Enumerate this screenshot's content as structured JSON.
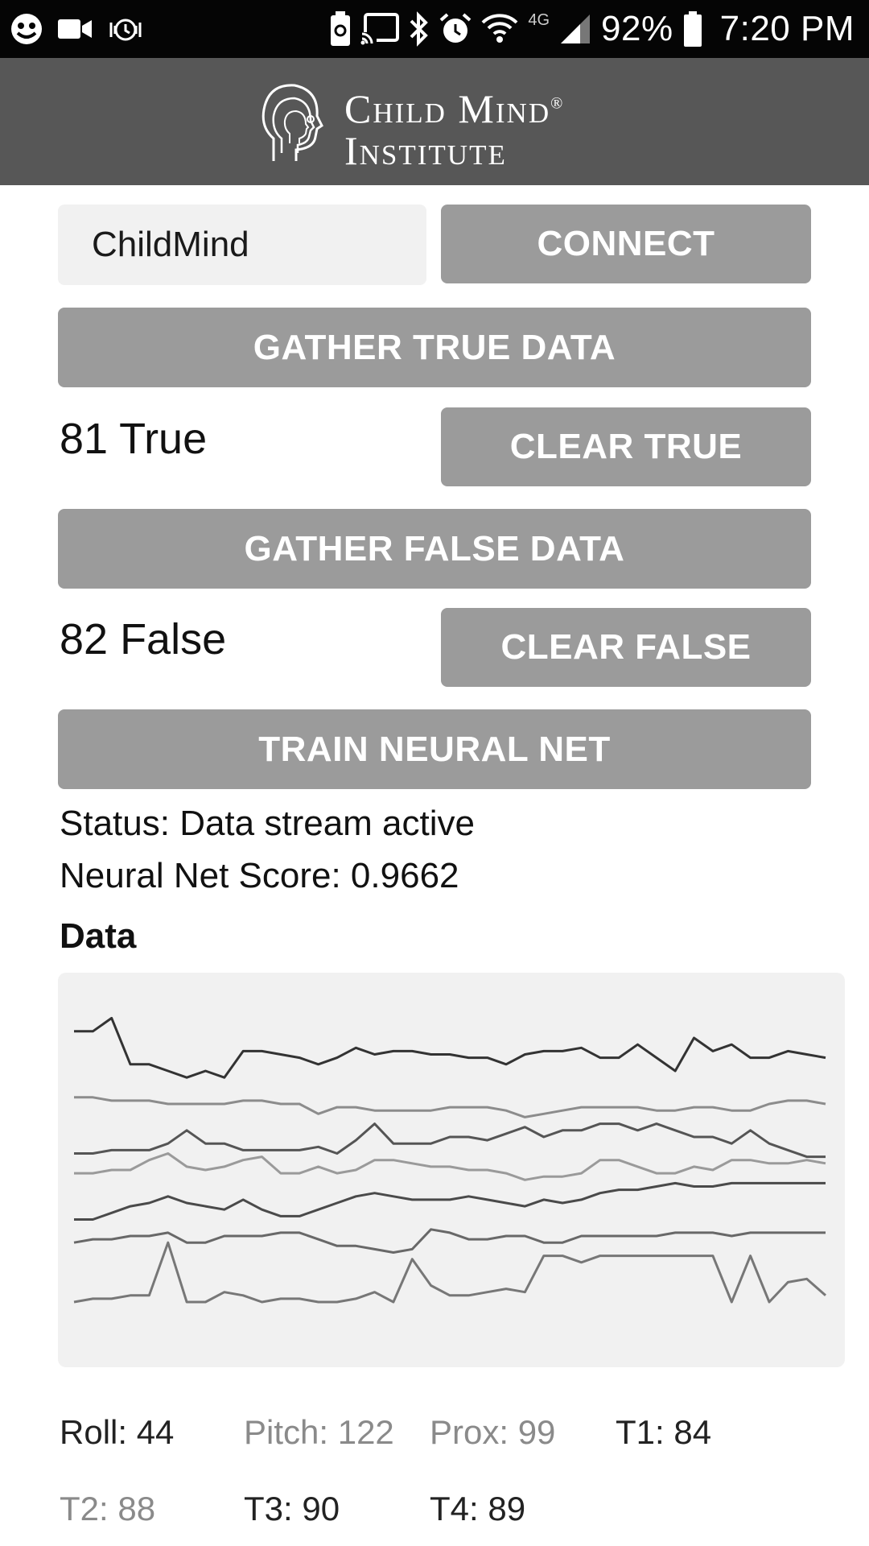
{
  "status_bar": {
    "battery": "92%",
    "time": "7:20 PM",
    "network": "4G",
    "left_icons": [
      "face-icon",
      "video-icon",
      "alarm-vibrate-icon"
    ],
    "right_icons": [
      "battery-saver-icon",
      "cast-icon",
      "bluetooth-icon",
      "alarm-icon",
      "wifi-icon",
      "signal-icon",
      "battery-icon"
    ]
  },
  "header": {
    "logo_line1": "Child Mind",
    "logo_line2": "Institute",
    "logo_mark": "reg"
  },
  "device": {
    "name_value": "ChildMind"
  },
  "buttons": {
    "connect": "CONNECT",
    "gather_true": "GATHER TRUE DATA",
    "clear_true": "CLEAR TRUE",
    "gather_false": "GATHER FALSE DATA",
    "clear_false": "CLEAR FALSE",
    "train": "TRAIN NEURAL NET"
  },
  "counts": {
    "true_label": "81 True",
    "false_label": "82 False"
  },
  "status": {
    "text": "Status: Data stream active",
    "score": "Neural Net Score: 0.9662"
  },
  "data_section": {
    "heading": "Data"
  },
  "chart_data": {
    "type": "line",
    "x": [
      0,
      1,
      2,
      3,
      4,
      5,
      6,
      7,
      8,
      9,
      10,
      11,
      12,
      13,
      14,
      15,
      16,
      17,
      18,
      19,
      20,
      21,
      22,
      23,
      24,
      25,
      26,
      27,
      28,
      29,
      30,
      31,
      32,
      33,
      34,
      35,
      36,
      37,
      38,
      39,
      40
    ],
    "ylim": [
      0,
      100
    ],
    "series": [
      {
        "color": "#333333",
        "values": [
          92,
          92,
          96,
          82,
          82,
          80,
          78,
          80,
          78,
          86,
          86,
          85,
          84,
          82,
          84,
          87,
          85,
          86,
          86,
          85,
          85,
          84,
          84,
          82,
          85,
          86,
          86,
          87,
          84,
          84,
          88,
          84,
          80,
          90,
          86,
          88,
          84,
          84,
          86,
          85,
          84
        ]
      },
      {
        "color": "#8c8c8c",
        "values": [
          72,
          72,
          71,
          71,
          71,
          70,
          70,
          70,
          70,
          71,
          71,
          70,
          70,
          67,
          69,
          69,
          68,
          68,
          68,
          68,
          69,
          69,
          69,
          68,
          66,
          67,
          68,
          69,
          69,
          69,
          69,
          68,
          68,
          69,
          69,
          68,
          68,
          70,
          71,
          71,
          70
        ]
      },
      {
        "color": "#555555",
        "values": [
          55,
          55,
          56,
          56,
          56,
          58,
          62,
          58,
          58,
          56,
          56,
          56,
          56,
          57,
          55,
          59,
          64,
          58,
          58,
          58,
          60,
          60,
          59,
          61,
          63,
          60,
          62,
          62,
          64,
          64,
          62,
          64,
          62,
          60,
          60,
          58,
          62,
          58,
          56,
          54,
          54
        ]
      },
      {
        "color": "#9a9a9a",
        "values": [
          49,
          49,
          50,
          50,
          53,
          55,
          51,
          50,
          51,
          53,
          54,
          49,
          49,
          51,
          49,
          50,
          53,
          53,
          52,
          51,
          51,
          50,
          50,
          49,
          47,
          48,
          48,
          49,
          53,
          53,
          51,
          49,
          49,
          51,
          50,
          53,
          53,
          52,
          52,
          53,
          52
        ]
      },
      {
        "color": "#4a4a4a",
        "values": [
          35,
          35,
          37,
          39,
          40,
          42,
          40,
          39,
          38,
          41,
          38,
          36,
          36,
          38,
          40,
          42,
          43,
          42,
          41,
          41,
          41,
          42,
          41,
          40,
          39,
          41,
          40,
          41,
          43,
          44,
          44,
          45,
          46,
          45,
          45,
          46,
          46,
          46,
          46,
          46,
          46
        ]
      },
      {
        "color": "#686868",
        "values": [
          28,
          29,
          29,
          30,
          30,
          31,
          28,
          28,
          30,
          30,
          30,
          31,
          31,
          29,
          27,
          27,
          26,
          25,
          26,
          32,
          31,
          29,
          29,
          30,
          30,
          28,
          28,
          30,
          30,
          30,
          30,
          30,
          31,
          31,
          31,
          30,
          31,
          31,
          31,
          31,
          31
        ]
      },
      {
        "color": "#777777",
        "values": [
          10,
          11,
          11,
          12,
          12,
          28,
          10,
          10,
          13,
          12,
          10,
          11,
          11,
          10,
          10,
          11,
          13,
          10,
          23,
          15,
          12,
          12,
          13,
          14,
          13,
          24,
          24,
          22,
          24,
          24,
          24,
          24,
          24,
          24,
          24,
          10,
          24,
          10,
          16,
          17,
          12
        ]
      }
    ]
  },
  "sensors": {
    "roll": "Roll: 44",
    "pitch": "Pitch: 122",
    "prox": "Prox: 99",
    "t1": "T1: 84",
    "t2": "T2: 88",
    "t3": "T3: 90",
    "t4": "T4: 89"
  }
}
